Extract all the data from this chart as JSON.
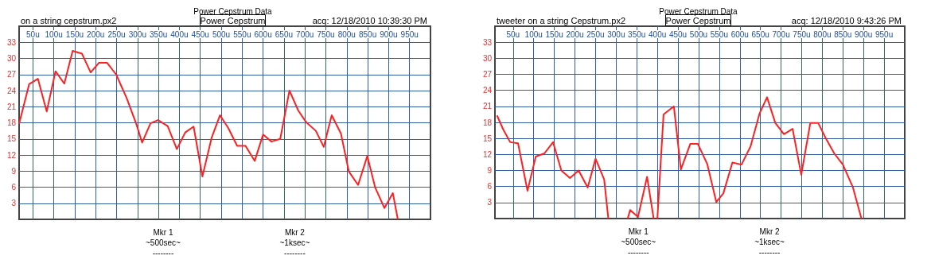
{
  "chart_data": [
    {
      "type": "line",
      "title": "Power Cepstrum Data",
      "subtitle": "on a string cepstrum.px2",
      "annotations": [
        "Power Cepstrum",
        "acq: 12/18/2010 10:39:30 PM",
        "Mkr 1\n~500sec~\n--------",
        "Mkr 2\n~1ksec~\n--------"
      ],
      "x": [
        17,
        41,
        62,
        83,
        104,
        125,
        145,
        167,
        188,
        208,
        227,
        249,
        274,
        297,
        311,
        331,
        349,
        372,
        394,
        414,
        434,
        455,
        477,
        497,
        517,
        538,
        558,
        580,
        600,
        620,
        641,
        663,
        684,
        703,
        726,
        745,
        764,
        786,
        805,
        827,
        849,
        868,
        890,
        910,
        922
      ],
      "series": [
        {
          "color": "#ff2020",
          "values": [
            17.8,
            25.2,
            26.2,
            20.1,
            27.6,
            25.3,
            31.4,
            30.9,
            27.4,
            29.2,
            29.2,
            27.0,
            22.6,
            17.8,
            14.3,
            17.9,
            18.5,
            17.4,
            13.1,
            16.2,
            17.3,
            8.0,
            15.2,
            19.4,
            17.0,
            13.7,
            13.7,
            10.9,
            15.8,
            14.5,
            15.0,
            24.0,
            20.3,
            18.1,
            16.5,
            13.5,
            19.4,
            16.0,
            8.9,
            6.4,
            11.8,
            5.9,
            2.1,
            4.9,
            0
          ]
        }
      ],
      "xlim": [
        17,
        1000
      ],
      "xticks": [
        {
          "value": 50,
          "label": "50u"
        },
        {
          "value": 100,
          "label": "100u"
        },
        {
          "value": 150,
          "label": "150u"
        },
        {
          "value": 200,
          "label": "200u"
        },
        {
          "value": 250,
          "label": "250u"
        },
        {
          "value": 300,
          "label": "300u"
        },
        {
          "value": 350,
          "label": "350u"
        },
        {
          "value": 400,
          "label": "400u"
        },
        {
          "value": 450,
          "label": "450u"
        },
        {
          "value": 500,
          "label": "500u"
        },
        {
          "value": 550,
          "label": "550u"
        },
        {
          "value": 600,
          "label": "600u"
        },
        {
          "value": 650,
          "label": "650u"
        },
        {
          "value": 700,
          "label": "700u"
        },
        {
          "value": 750,
          "label": "750u"
        },
        {
          "value": 800,
          "label": "800u"
        },
        {
          "value": 850,
          "label": "850u"
        },
        {
          "value": 900,
          "label": "900u"
        },
        {
          "value": 950,
          "label": "950u"
        }
      ],
      "ylim": [
        0,
        36
      ],
      "yticks": [
        3,
        6,
        9,
        12,
        15,
        18,
        21,
        24,
        27,
        30,
        33
      ],
      "grid": true,
      "marker": "none"
    },
    {
      "type": "line",
      "title": "Power Cepstrum Data",
      "subtitle": "tweeter on a string Cepstrum.px2",
      "annotations": [
        "Power Cepstrum",
        "acq: 12/18/2010 9:43:26 PM",
        "Mkr 1\n~500sec~\n--------",
        "Mkr 2\n~1ksec~\n--------"
      ],
      "x": [
        11,
        26,
        43,
        62,
        85,
        105,
        126,
        147,
        167,
        188,
        209,
        231,
        250,
        271,
        281,
        305,
        328,
        334,
        353,
        375,
        391,
        396,
        400,
        415,
        440,
        457,
        480,
        498,
        521,
        543,
        560,
        582,
        604,
        626,
        648,
        666,
        686,
        707,
        728,
        749,
        771,
        790,
        808,
        829,
        850,
        874,
        895
      ],
      "series": [
        {
          "color": "#ff2020",
          "values": [
            19.3,
            16.7,
            14.3,
            14.1,
            5.2,
            11.6,
            12.2,
            14.3,
            9.0,
            7.6,
            9.0,
            5.8,
            11.2,
            7.3,
            0,
            null,
            0,
            1.6,
            0.3,
            7.8,
            0,
            null,
            0,
            19.5,
            21.0,
            9.2,
            14.0,
            14.0,
            10.2,
            3.1,
            4.7,
            10.5,
            10.1,
            13.5,
            19.7,
            22.7,
            17.9,
            15.8,
            16.8,
            8.2,
            17.9,
            17.9,
            15.1,
            12.2,
            10.1,
            5.9,
            0
          ]
        }
      ],
      "xlim": [
        6,
        1000
      ],
      "xticks": [
        {
          "value": 50,
          "label": "50u"
        },
        {
          "value": 100,
          "label": "100u"
        },
        {
          "value": 150,
          "label": "150u"
        },
        {
          "value": 200,
          "label": "200u"
        },
        {
          "value": 250,
          "label": "250u"
        },
        {
          "value": 300,
          "label": "300u"
        },
        {
          "value": 350,
          "label": "350u"
        },
        {
          "value": 400,
          "label": "400u"
        },
        {
          "value": 450,
          "label": "450u"
        },
        {
          "value": 500,
          "label": "500u"
        },
        {
          "value": 550,
          "label": "550u"
        },
        {
          "value": 600,
          "label": "600u"
        },
        {
          "value": 650,
          "label": "650u"
        },
        {
          "value": 700,
          "label": "700u"
        },
        {
          "value": 750,
          "label": "750u"
        },
        {
          "value": 800,
          "label": "800u"
        },
        {
          "value": 850,
          "label": "850u"
        },
        {
          "value": 900,
          "label": "900u"
        },
        {
          "value": 950,
          "label": "950u"
        }
      ],
      "ylim": [
        0,
        36
      ],
      "yticks": [
        3,
        6,
        9,
        12,
        15,
        18,
        21,
        24,
        27,
        30,
        33
      ],
      "grid": true,
      "marker": "none"
    }
  ]
}
